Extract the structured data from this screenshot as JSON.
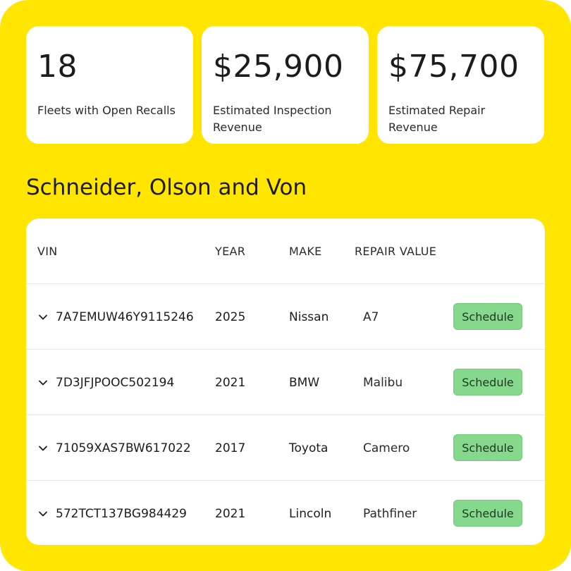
{
  "stats": [
    {
      "value": "18",
      "label": "Fleets with Open Recalls"
    },
    {
      "value": "$25,900",
      "label": "Estimated Inspection Revenue"
    },
    {
      "value": "$75,700",
      "label": "Estimated Repair Revenue"
    }
  ],
  "fleet": {
    "name": "Schneider, Olson and Von"
  },
  "table": {
    "headers": {
      "vin": "VIN",
      "year": "YEAR",
      "make": "MAKE",
      "repair_value": "REPAIR VALUE"
    },
    "action_label": "Schedule",
    "rows": [
      {
        "vin": "7A7EMUW46Y9115246",
        "year": "2025",
        "make": "Nissan",
        "repair_value": "A7"
      },
      {
        "vin": "7D3JFJPOOC502194",
        "year": "2021",
        "make": "BMW",
        "repair_value": "Malibu"
      },
      {
        "vin": "71059XAS7BW617022",
        "year": "2017",
        "make": "Toyota",
        "repair_value": "Camero"
      },
      {
        "vin": "572TCT137BG984429",
        "year": "2021",
        "make": "Lincoln",
        "repair_value": "Pathfiner"
      }
    ]
  },
  "colors": {
    "background": "#FFE500",
    "card": "#FFFFFF",
    "button": "#86D98C"
  },
  "icons": {
    "row_toggle": "chevron-down-icon"
  }
}
